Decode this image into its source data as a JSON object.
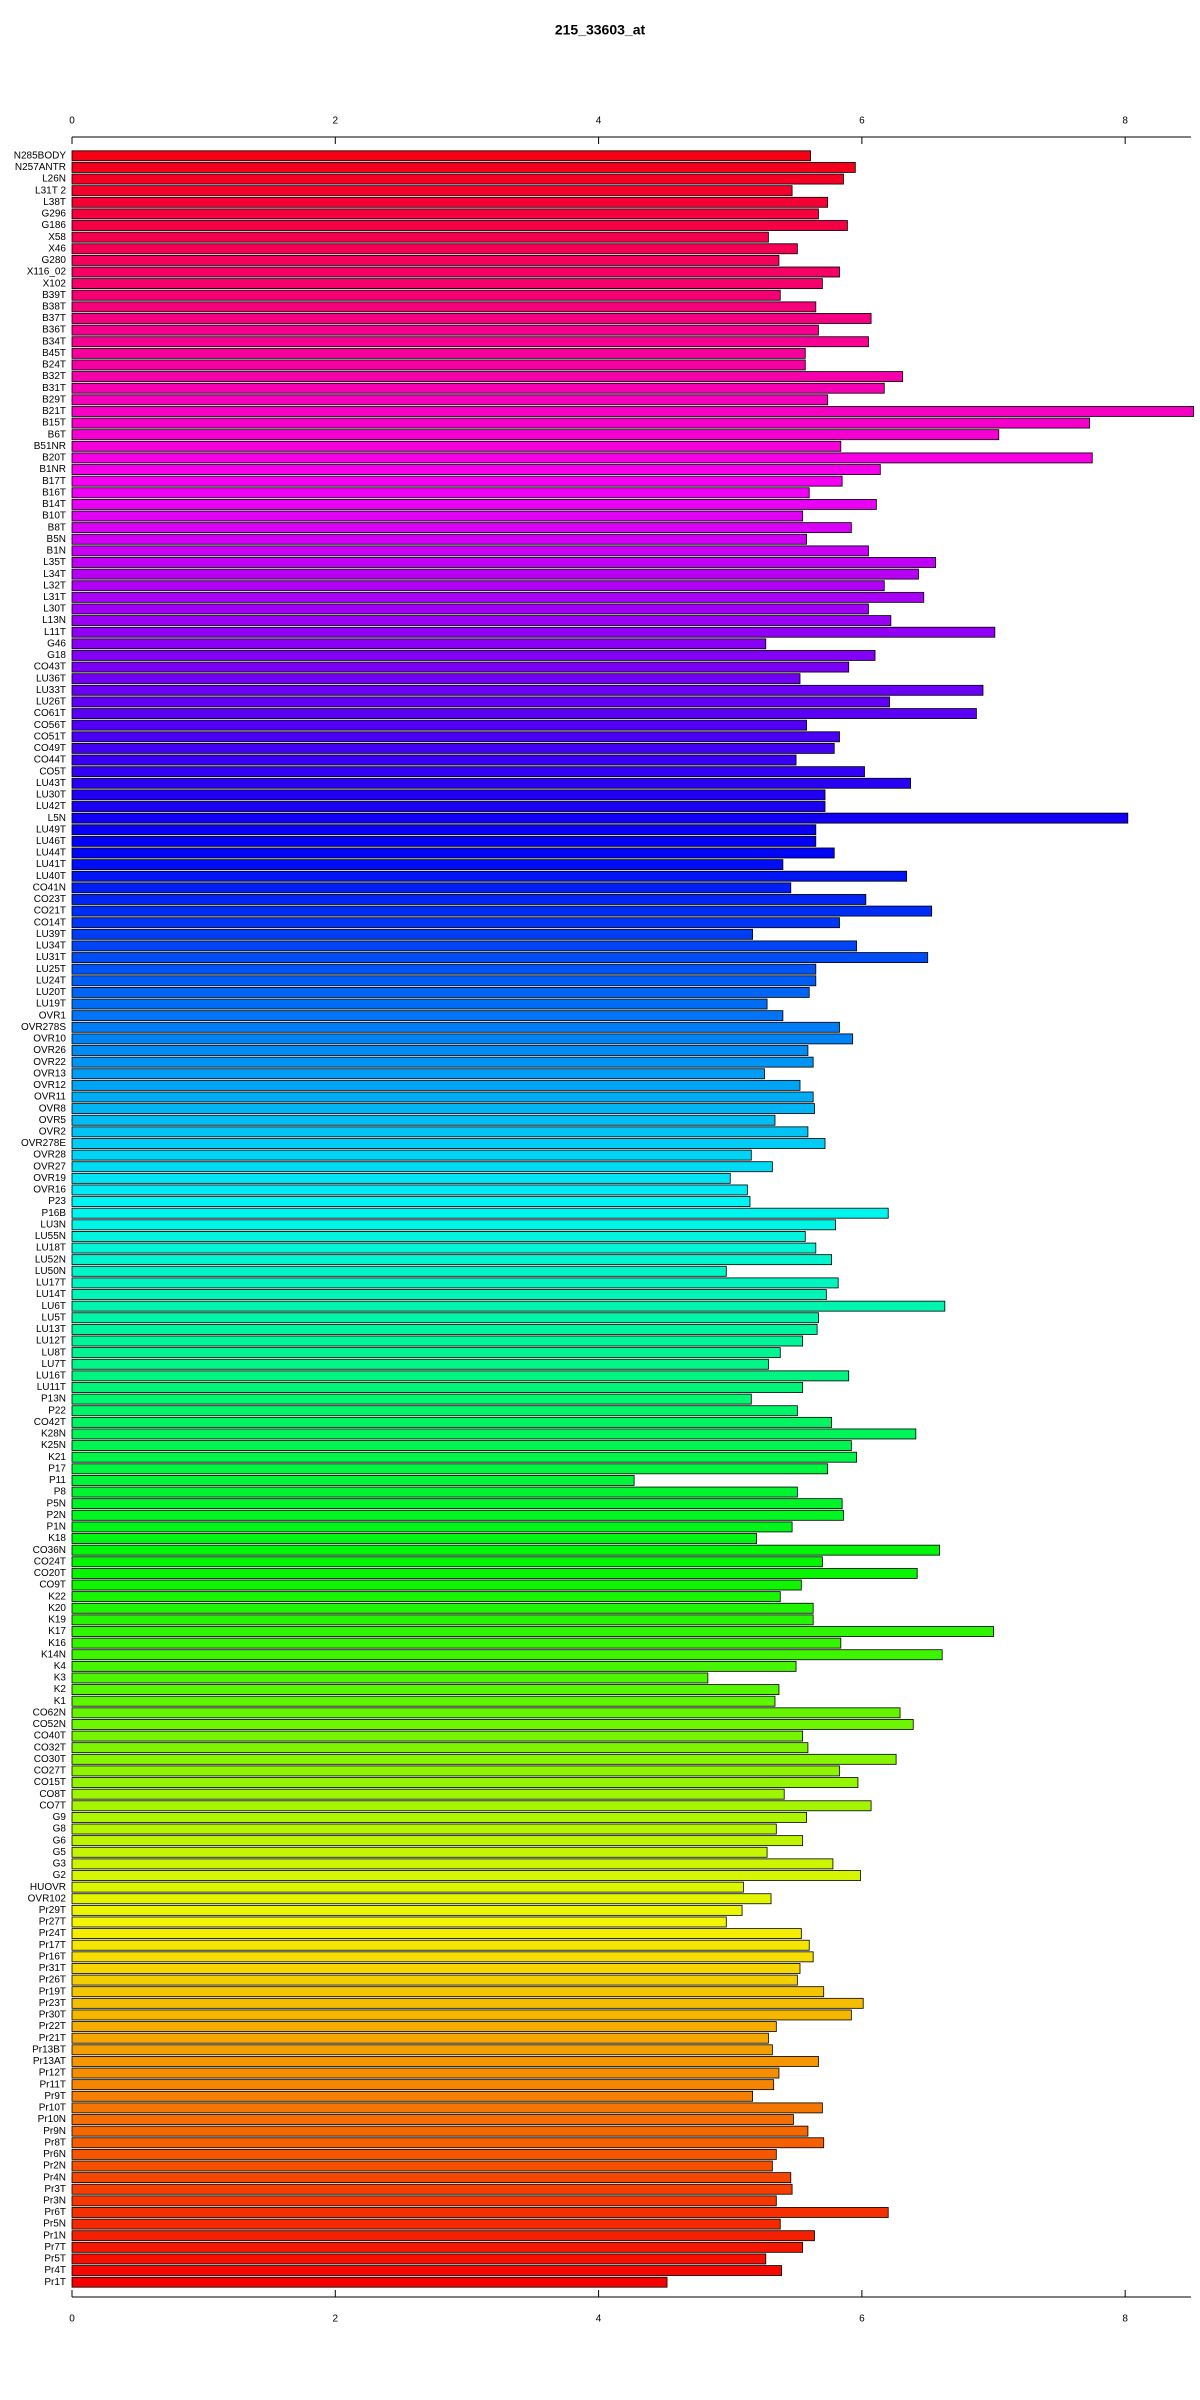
{
  "chart_data": {
    "type": "barh",
    "title": "215_33603_at",
    "categories": [
      "N285BODY",
      "N257ANTR",
      "L26N",
      "L31T 2",
      "L38T",
      "G296",
      "G186",
      "X58",
      "X46",
      "G280",
      "X116_02",
      "X102",
      "B39T",
      "B38T",
      "B37T",
      "B36T",
      "B34T",
      "B45T",
      "B24T",
      "B32T",
      "B31T",
      "B29T",
      "B21T",
      "B15T",
      "B6T",
      "B51NR",
      "B20T",
      "B1NR",
      "B17T",
      "B16T",
      "B14T",
      "B10T",
      "B8T",
      "B5N",
      "B1N",
      "L35T",
      "L34T",
      "L32T",
      "L31T",
      "L30T",
      "L13N",
      "L11T",
      "G46",
      "G18",
      "CO43T",
      "LU36T",
      "LU33T",
      "LU26T",
      "CO61T",
      "CO56T",
      "CO51T",
      "CO49T",
      "CO44T",
      "CO5T",
      "LU43T",
      "LU30T",
      "LU42T",
      "L5N",
      "LU49T",
      "LU46T",
      "LU44T",
      "LU41T",
      "LU40T",
      "CO41N",
      "CO23T",
      "CO21T",
      "CO14T",
      "LU39T",
      "LU34T",
      "LU31T",
      "LU25T",
      "LU24T",
      "LU20T",
      "LU19T",
      "OVR1",
      "OVR278S",
      "OVR10",
      "OVR26",
      "OVR22",
      "OVR13",
      "OVR12",
      "OVR11",
      "OVR8",
      "OVR5",
      "OVR2",
      "OVR278E",
      "OVR28",
      "OVR27",
      "OVR19",
      "OVR16",
      "P23",
      "P16B",
      "LU3N",
      "LU55N",
      "LU18T",
      "LU52N",
      "LU50N",
      "LU17T",
      "LU14T",
      "LU6T",
      "LU5T",
      "LU13T",
      "LU12T",
      "LU8T",
      "LU7T",
      "LU16T",
      "LU11T",
      "P13N",
      "P22",
      "CO42T",
      "K28N",
      "K25N",
      "K21",
      "P17",
      "P11",
      "P8",
      "P5N",
      "P2N",
      "P1N",
      "K18",
      "CO36N",
      "CO24T",
      "CO20T",
      "CO9T",
      "K22",
      "K20",
      "K19",
      "K17",
      "K16",
      "K14N",
      "K4",
      "K3",
      "K2",
      "K1",
      "CO62N",
      "CO52N",
      "CO40T",
      "CO32T",
      "CO30T",
      "CO27T",
      "CO15T",
      "CO8T",
      "CO7T",
      "G9",
      "G8",
      "G6",
      "G5",
      "G3",
      "G2",
      "HUOVR",
      "OVR102",
      "Pr29T",
      "Pr27T",
      "Pr24T",
      "Pr17T",
      "Pr16T",
      "Pr31T",
      "Pr26T",
      "Pr19T",
      "Pr23T",
      "Pr30T",
      "Pr22T",
      "Pr21T",
      "Pr13BT",
      "Pr13AT",
      "Pr12T",
      "Pr11T",
      "Pr9T",
      "Pr10T",
      "Pr10N",
      "Pr9N",
      "Pr8T",
      "Pr6N",
      "Pr2N",
      "Pr4N",
      "Pr3T",
      "Pr3N",
      "Pr6T",
      "Pr5N",
      "Pr1N",
      "Pr7T",
      "Pr5T",
      "Pr4T",
      "Pr1T"
    ],
    "values": [
      5.61,
      5.95,
      5.86,
      5.47,
      5.74,
      5.67,
      5.89,
      5.29,
      5.51,
      5.37,
      5.83,
      5.7,
      5.38,
      5.65,
      6.07,
      5.67,
      6.05,
      5.57,
      5.57,
      6.31,
      6.17,
      5.74,
      8.52,
      7.73,
      7.04,
      5.84,
      7.75,
      6.14,
      5.85,
      5.6,
      6.11,
      5.55,
      5.92,
      5.58,
      6.05,
      6.56,
      6.43,
      6.17,
      6.47,
      6.05,
      6.22,
      7.01,
      5.27,
      6.1,
      5.9,
      5.53,
      6.92,
      6.21,
      6.87,
      5.58,
      5.83,
      5.79,
      5.5,
      6.02,
      6.37,
      5.72,
      5.72,
      8.02,
      5.65,
      5.65,
      5.79,
      5.4,
      6.34,
      5.46,
      6.03,
      6.53,
      5.83,
      5.17,
      5.96,
      6.5,
      5.65,
      5.65,
      5.6,
      5.28,
      5.4,
      5.83,
      5.93,
      5.59,
      5.63,
      5.26,
      5.53,
      5.63,
      5.64,
      5.34,
      5.59,
      5.72,
      5.16,
      5.32,
      5.0,
      5.13,
      5.15,
      6.2,
      5.8,
      5.57,
      5.65,
      5.77,
      4.97,
      5.82,
      5.73,
      6.63,
      5.67,
      5.66,
      5.55,
      5.38,
      5.29,
      5.9,
      5.55,
      5.16,
      5.51,
      5.77,
      6.41,
      5.92,
      5.96,
      5.74,
      4.27,
      5.51,
      5.85,
      5.86,
      5.47,
      5.2,
      6.59,
      5.7,
      6.42,
      5.54,
      5.38,
      5.63,
      5.63,
      7.0,
      5.84,
      6.61,
      5.5,
      4.83,
      5.37,
      5.34,
      6.29,
      6.39,
      5.55,
      5.59,
      6.26,
      5.83,
      5.97,
      5.41,
      6.07,
      5.58,
      5.35,
      5.55,
      5.28,
      5.78,
      5.99,
      5.1,
      5.31,
      5.09,
      4.97,
      5.54,
      5.6,
      5.63,
      5.53,
      5.51,
      5.71,
      6.01,
      5.92,
      5.35,
      5.29,
      5.32,
      5.67,
      5.37,
      5.33,
      5.17,
      5.7,
      5.48,
      5.59,
      5.71,
      5.35,
      5.32,
      5.46,
      5.47,
      5.35,
      6.2,
      5.38,
      5.64,
      5.55,
      5.27,
      5.39,
      4.52
    ],
    "bar_hue_range": [
      355,
      0
    ],
    "xlim": [
      0,
      8.5
    ],
    "xticks": [
      0,
      2,
      4,
      6,
      8
    ]
  }
}
